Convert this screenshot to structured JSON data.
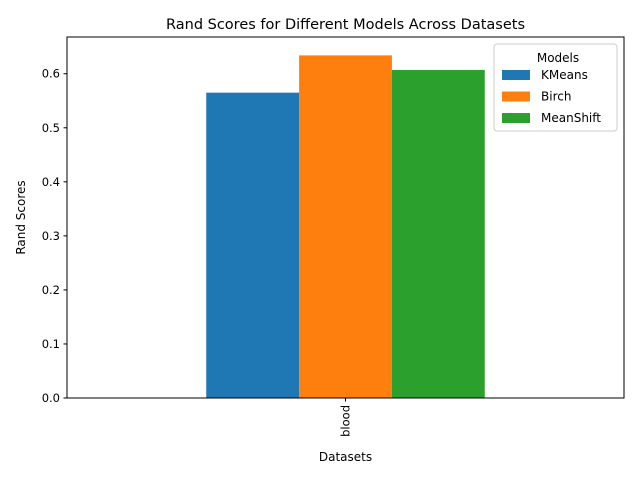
{
  "chart_data": {
    "type": "bar",
    "title": "Rand Scores for Different Models Across Datasets",
    "xlabel": "Datasets",
    "ylabel": "Rand Scores",
    "categories": [
      "blood"
    ],
    "series": [
      {
        "name": "KMeans",
        "values": [
          0.565
        ],
        "color": "#1f77b4"
      },
      {
        "name": "Birch",
        "values": [
          0.634
        ],
        "color": "#ff7f0e"
      },
      {
        "name": "MeanShift",
        "values": [
          0.607
        ],
        "color": "#2ca02c"
      }
    ],
    "ylim": [
      0,
      0.668
    ],
    "yticks": [
      0.0,
      0.1,
      0.2,
      0.3,
      0.4,
      0.5,
      0.6
    ],
    "ytick_labels": [
      "0.0",
      "0.1",
      "0.2",
      "0.3",
      "0.4",
      "0.5",
      "0.6"
    ],
    "legend": {
      "title": "Models",
      "position": "top-right"
    },
    "grid": false
  }
}
